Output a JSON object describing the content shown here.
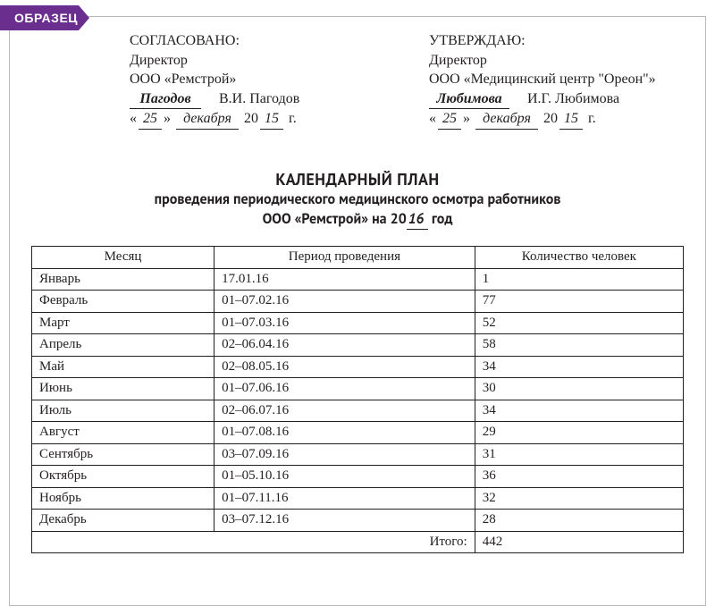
{
  "badge": {
    "text": "ОБРАЗЕЦ",
    "bg": "#6a2f8e",
    "fg": "#ffffff"
  },
  "left_approval": {
    "line1": "СОГЛАСОВАНО:",
    "line2": "Директор",
    "line3": "ООО «Ремстрой»",
    "sig_surname": "Пагодов",
    "full_name": "В.И. Пагодов",
    "day": "25",
    "month": "декабря",
    "year_suffix": "15"
  },
  "right_approval": {
    "line1": "УТВЕРЖДАЮ:",
    "line2": "Директор",
    "line3": "ООО «Медицинский центр \"Ореон\"»",
    "sig_surname": "Любимова",
    "full_name": "И.Г. Любимова",
    "day": "25",
    "month": "декабря",
    "year_suffix": "15"
  },
  "title": {
    "line1": "КАЛЕНДАРНЫЙ ПЛАН",
    "line2": "проведения периодического медицинского осмотра работников",
    "line3_prefix": "ООО «Ремстрой» на 20",
    "line3_year": "16",
    "line3_suffix": " год"
  },
  "table": {
    "columns": [
      "Месяц",
      "Период проведения",
      "Количество человек"
    ],
    "rows": [
      [
        "Январь",
        "17.01.16",
        "1"
      ],
      [
        "Февраль",
        "01–07.02.16",
        "77"
      ],
      [
        "Март",
        "01–07.03.16",
        "52"
      ],
      [
        "Апрель",
        "02–06.04.16",
        "58"
      ],
      [
        "Май",
        "02–08.05.16",
        "34"
      ],
      [
        "Июнь",
        "01–07.06.16",
        "30"
      ],
      [
        "Июль",
        "02–06.07.16",
        "34"
      ],
      [
        "Август",
        "01–07.08.16",
        "29"
      ],
      [
        "Сентябрь",
        "03–07.09.16",
        "31"
      ],
      [
        "Октябрь",
        "01–05.10.16",
        "36"
      ],
      [
        "Ноябрь",
        "01–07.11.16",
        "32"
      ],
      [
        "Декабрь",
        "03–07.12.16",
        "28"
      ]
    ],
    "total_label": "Итого:",
    "total_value": "442"
  },
  "literals": {
    "quote_open": "«",
    "quote_close": "»",
    "year_prefix": "20",
    "year_suffix_literal": "г."
  }
}
